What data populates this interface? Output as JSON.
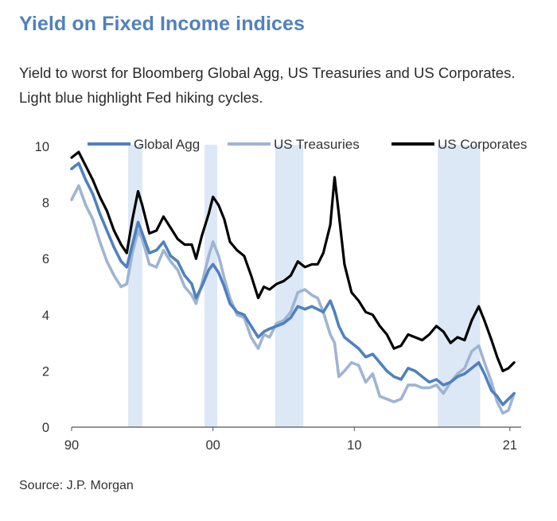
{
  "header": {
    "title": "Yield on Fixed Income indices",
    "subtitle": "Yield to worst for Bloomberg Global Agg, US Treasuries and US Corporates. Light blue highlight Fed hiking cycles."
  },
  "footer": {
    "source": "Source: J.P. Morgan"
  },
  "chart_data": {
    "type": "line",
    "title": "Yield on Fixed Income indices",
    "subtitle": "Yield to worst for Bloomberg Global Agg, US Treasuries and US Corporates. Light blue highlight Fed hiking cycles.",
    "xlabel": "",
    "ylabel": "",
    "xlim": [
      1990,
      2021.8
    ],
    "ylim": [
      0,
      10
    ],
    "x_ticks": [
      {
        "value": 1990,
        "label": "90"
      },
      {
        "value": 2000,
        "label": "00"
      },
      {
        "value": 2010,
        "label": "10"
      },
      {
        "value": 2021,
        "label": "21"
      }
    ],
    "y_ticks": [
      0,
      2,
      4,
      6,
      8,
      10
    ],
    "grid": false,
    "legend_position": "top",
    "highlights": [
      {
        "start": 1994.0,
        "end": 1995.0
      },
      {
        "start": 1999.4,
        "end": 2000.3
      },
      {
        "start": 2004.4,
        "end": 2006.4
      },
      {
        "start": 2015.9,
        "end": 2018.9
      }
    ],
    "highlight_color": "#dce8f5",
    "series": [
      {
        "name": "Global Agg",
        "color": "#4f81bd",
        "points": [
          [
            1990,
            9.2
          ],
          [
            1990.5,
            9.4
          ],
          [
            1991,
            8.8
          ],
          [
            1991.5,
            8.3
          ],
          [
            1992,
            7.6
          ],
          [
            1992.5,
            7.0
          ],
          [
            1993,
            6.4
          ],
          [
            1993.5,
            5.9
          ],
          [
            1993.9,
            5.7
          ],
          [
            1994.3,
            6.5
          ],
          [
            1994.7,
            7.3
          ],
          [
            1995,
            6.9
          ],
          [
            1995.5,
            6.2
          ],
          [
            1996,
            6.3
          ],
          [
            1996.5,
            6.6
          ],
          [
            1997,
            6.1
          ],
          [
            1997.5,
            5.9
          ],
          [
            1998,
            5.4
          ],
          [
            1998.5,
            5.1
          ],
          [
            1998.8,
            4.6
          ],
          [
            1999.2,
            5.0
          ],
          [
            1999.7,
            5.6
          ],
          [
            2000,
            5.8
          ],
          [
            2000.4,
            5.5
          ],
          [
            2000.8,
            5.0
          ],
          [
            2001.2,
            4.4
          ],
          [
            2001.7,
            4.1
          ],
          [
            2002.2,
            4.0
          ],
          [
            2002.7,
            3.6
          ],
          [
            2003.2,
            3.2
          ],
          [
            2003.6,
            3.4
          ],
          [
            2004,
            3.5
          ],
          [
            2004.5,
            3.6
          ],
          [
            2005,
            3.7
          ],
          [
            2005.5,
            3.9
          ],
          [
            2006,
            4.3
          ],
          [
            2006.5,
            4.2
          ],
          [
            2007,
            4.3
          ],
          [
            2007.4,
            4.2
          ],
          [
            2007.8,
            4.1
          ],
          [
            2008.3,
            4.5
          ],
          [
            2008.6,
            4.1
          ],
          [
            2008.9,
            3.6
          ],
          [
            2009.3,
            3.2
          ],
          [
            2009.8,
            3.0
          ],
          [
            2010.3,
            2.8
          ],
          [
            2010.8,
            2.5
          ],
          [
            2011.3,
            2.6
          ],
          [
            2011.8,
            2.3
          ],
          [
            2012.3,
            2.0
          ],
          [
            2012.8,
            1.8
          ],
          [
            2013.3,
            1.7
          ],
          [
            2013.8,
            2.1
          ],
          [
            2014.3,
            2.0
          ],
          [
            2014.8,
            1.8
          ],
          [
            2015.3,
            1.6
          ],
          [
            2015.8,
            1.7
          ],
          [
            2016.3,
            1.5
          ],
          [
            2016.8,
            1.6
          ],
          [
            2017.3,
            1.8
          ],
          [
            2017.8,
            1.9
          ],
          [
            2018.3,
            2.1
          ],
          [
            2018.8,
            2.3
          ],
          [
            2019.2,
            1.9
          ],
          [
            2019.7,
            1.3
          ],
          [
            2020.1,
            1.1
          ],
          [
            2020.5,
            0.8
          ],
          [
            2020.9,
            1.0
          ],
          [
            2021.3,
            1.2
          ]
        ]
      },
      {
        "name": "US Treasuries",
        "color": "#9fb4d4",
        "points": [
          [
            1990,
            8.1
          ],
          [
            1990.5,
            8.6
          ],
          [
            1991,
            7.9
          ],
          [
            1991.5,
            7.4
          ],
          [
            1992,
            6.6
          ],
          [
            1992.5,
            5.9
          ],
          [
            1993,
            5.4
          ],
          [
            1993.5,
            5.0
          ],
          [
            1993.9,
            5.1
          ],
          [
            1994.3,
            6.2
          ],
          [
            1994.7,
            7.0
          ],
          [
            1995,
            6.7
          ],
          [
            1995.5,
            5.8
          ],
          [
            1996,
            5.7
          ],
          [
            1996.5,
            6.3
          ],
          [
            1997,
            5.9
          ],
          [
            1997.5,
            5.6
          ],
          [
            1998,
            5.0
          ],
          [
            1998.5,
            4.7
          ],
          [
            1998.8,
            4.4
          ],
          [
            1999.2,
            5.1
          ],
          [
            1999.7,
            6.1
          ],
          [
            2000,
            6.6
          ],
          [
            2000.4,
            6.1
          ],
          [
            2000.8,
            5.3
          ],
          [
            2001.2,
            4.6
          ],
          [
            2001.7,
            4.0
          ],
          [
            2002.2,
            3.9
          ],
          [
            2002.7,
            3.2
          ],
          [
            2003.2,
            2.8
          ],
          [
            2003.6,
            3.3
          ],
          [
            2004,
            3.2
          ],
          [
            2004.5,
            3.7
          ],
          [
            2005,
            3.8
          ],
          [
            2005.5,
            4.1
          ],
          [
            2006,
            4.8
          ],
          [
            2006.5,
            4.9
          ],
          [
            2007,
            4.7
          ],
          [
            2007.4,
            4.6
          ],
          [
            2007.8,
            4.1
          ],
          [
            2008.3,
            3.3
          ],
          [
            2008.6,
            3.0
          ],
          [
            2008.9,
            1.8
          ],
          [
            2009.3,
            2.0
          ],
          [
            2009.8,
            2.3
          ],
          [
            2010.3,
            2.2
          ],
          [
            2010.8,
            1.6
          ],
          [
            2011.3,
            1.9
          ],
          [
            2011.8,
            1.1
          ],
          [
            2012.3,
            1.0
          ],
          [
            2012.8,
            0.9
          ],
          [
            2013.3,
            1.0
          ],
          [
            2013.8,
            1.5
          ],
          [
            2014.3,
            1.5
          ],
          [
            2014.8,
            1.4
          ],
          [
            2015.3,
            1.4
          ],
          [
            2015.8,
            1.5
          ],
          [
            2016.3,
            1.2
          ],
          [
            2016.8,
            1.6
          ],
          [
            2017.3,
            1.9
          ],
          [
            2017.8,
            2.1
          ],
          [
            2018.3,
            2.7
          ],
          [
            2018.8,
            2.9
          ],
          [
            2019.2,
            2.3
          ],
          [
            2019.7,
            1.6
          ],
          [
            2020.1,
            0.9
          ],
          [
            2020.5,
            0.5
          ],
          [
            2020.9,
            0.6
          ],
          [
            2021.3,
            1.2
          ]
        ]
      },
      {
        "name": "US Corporates",
        "color": "#000000",
        "points": [
          [
            1990,
            9.6
          ],
          [
            1990.5,
            9.8
          ],
          [
            1991,
            9.3
          ],
          [
            1991.5,
            8.8
          ],
          [
            1992,
            8.2
          ],
          [
            1992.5,
            7.7
          ],
          [
            1993,
            7.0
          ],
          [
            1993.5,
            6.5
          ],
          [
            1993.9,
            6.2
          ],
          [
            1994.3,
            7.4
          ],
          [
            1994.7,
            8.4
          ],
          [
            1995,
            7.9
          ],
          [
            1995.5,
            6.9
          ],
          [
            1996,
            7.0
          ],
          [
            1996.5,
            7.5
          ],
          [
            1997,
            7.1
          ],
          [
            1997.5,
            6.7
          ],
          [
            1998,
            6.5
          ],
          [
            1998.5,
            6.5
          ],
          [
            1998.8,
            6.0
          ],
          [
            1999.2,
            6.8
          ],
          [
            1999.7,
            7.6
          ],
          [
            2000,
            8.2
          ],
          [
            2000.4,
            7.9
          ],
          [
            2000.8,
            7.4
          ],
          [
            2001.2,
            6.6
          ],
          [
            2001.7,
            6.3
          ],
          [
            2002.2,
            6.1
          ],
          [
            2002.7,
            5.4
          ],
          [
            2003.2,
            4.6
          ],
          [
            2003.6,
            5.0
          ],
          [
            2004,
            4.9
          ],
          [
            2004.5,
            5.1
          ],
          [
            2005,
            5.2
          ],
          [
            2005.5,
            5.4
          ],
          [
            2006,
            5.9
          ],
          [
            2006.5,
            5.7
          ],
          [
            2007,
            5.8
          ],
          [
            2007.4,
            5.8
          ],
          [
            2007.8,
            6.2
          ],
          [
            2008.3,
            7.2
          ],
          [
            2008.6,
            8.9
          ],
          [
            2008.9,
            7.6
          ],
          [
            2009.3,
            5.8
          ],
          [
            2009.8,
            4.8
          ],
          [
            2010.3,
            4.5
          ],
          [
            2010.8,
            4.1
          ],
          [
            2011.3,
            4.0
          ],
          [
            2011.8,
            3.6
          ],
          [
            2012.3,
            3.3
          ],
          [
            2012.8,
            2.8
          ],
          [
            2013.3,
            2.9
          ],
          [
            2013.8,
            3.3
          ],
          [
            2014.3,
            3.2
          ],
          [
            2014.8,
            3.1
          ],
          [
            2015.3,
            3.3
          ],
          [
            2015.8,
            3.6
          ],
          [
            2016.3,
            3.4
          ],
          [
            2016.8,
            3.0
          ],
          [
            2017.3,
            3.2
          ],
          [
            2017.8,
            3.1
          ],
          [
            2018.3,
            3.8
          ],
          [
            2018.8,
            4.3
          ],
          [
            2019.2,
            3.8
          ],
          [
            2019.7,
            3.1
          ],
          [
            2020.1,
            2.5
          ],
          [
            2020.5,
            2.0
          ],
          [
            2020.9,
            2.1
          ],
          [
            2021.3,
            2.3
          ]
        ]
      }
    ]
  }
}
